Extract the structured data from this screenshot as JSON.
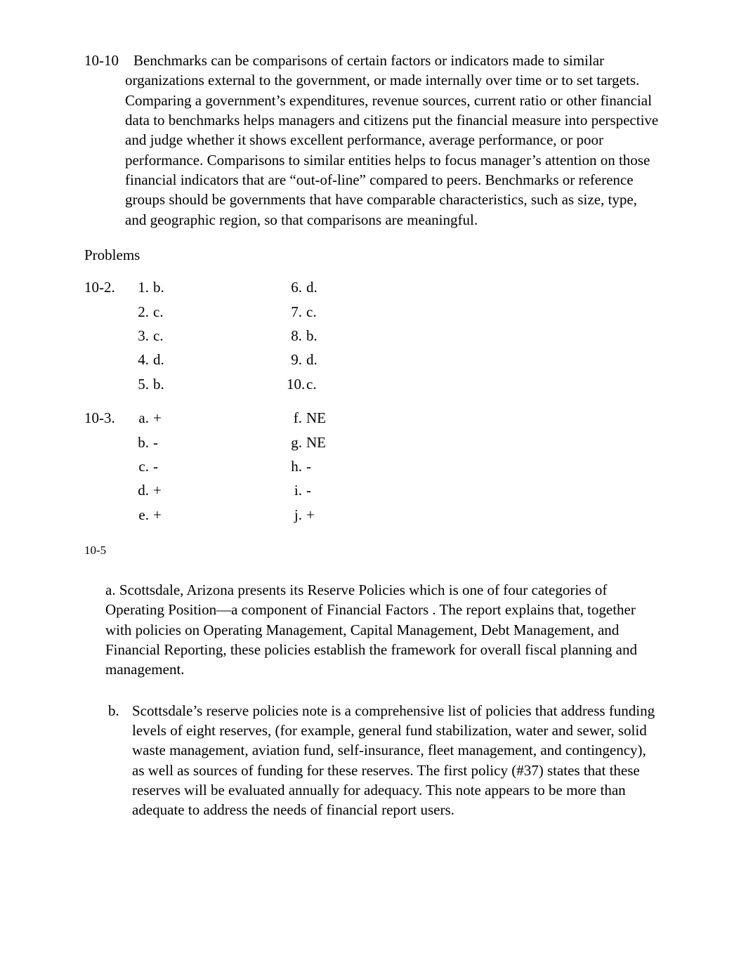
{
  "paragraph_10_10": "10-10 Benchmarks can be comparisons of certain factors or indicators made to similar organizations external to the government, or made internally over time or to set targets.  Comparing a government’s expenditures, revenue sources, current ratio or other financial data to benchmarks helps managers and citizens put the financial measure into perspective and judge whether it shows excellent performance, average performance, or poor performance.  Comparisons to similar entities helps to focus manager’s attention on those financial indicators that are “out-of-line” compared to peers.  Benchmarks or reference groups should be governments that have comparable characteristics, such as size, type, and geographic region, so that comparisons are meaningful.",
  "problems_label": "Problems",
  "problem_10_2": {
    "label": "10-2.",
    "left": [
      {
        "n": "1.",
        "v": "b."
      },
      {
        "n": "2.",
        "v": "c."
      },
      {
        "n": "3.",
        "v": "c."
      },
      {
        "n": "4.",
        "v": "d."
      },
      {
        "n": "5.",
        "v": "b."
      }
    ],
    "right": [
      {
        "n": "6.",
        "v": "d."
      },
      {
        "n": "7.",
        "v": "c."
      },
      {
        "n": "8.",
        "v": "b."
      },
      {
        "n": "9.",
        "v": "d."
      },
      {
        "n": "10.",
        "v": "c."
      }
    ]
  },
  "problem_10_3": {
    "label": "10-3.",
    "left": [
      {
        "n": "a.",
        "v": "+"
      },
      {
        "n": "b.",
        "v": "-"
      },
      {
        "n": "c.",
        "v": "-"
      },
      {
        "n": "d.",
        "v": "+"
      },
      {
        "n": "e.",
        "v": "+"
      }
    ],
    "right": [
      {
        "n": "f.",
        "v": "NE"
      },
      {
        "n": "g.",
        "v": "NE"
      },
      {
        "n": "h.",
        "v": "-"
      },
      {
        "n": "i.",
        "v": "-"
      },
      {
        "n": "j.",
        "v": "+"
      }
    ]
  },
  "problem_10_5": {
    "label": "10-5",
    "a_label": "a.",
    "a_text": "Scottsdale, Arizona presents its Reserve Policies which is one of four categories of Operating Position—a component of Financial Factors . The report explains that, together with policies on Operating Management, Capital Management, Debt Management, and Financial Reporting, these policies establish the framework for overall fiscal planning and management.",
    "b_label": "b.",
    "b_text": "Scottsdale’s reserve policies note is a comprehensive list of policies that address funding levels of eight reserves, (for example,  general fund stabilization, water and sewer, solid waste management, aviation fund, self-insurance, fleet management, and contingency), as well as sources of funding for these reserves.  The first policy (#37) states that these reserves will be evaluated annually for adequacy. This note appears to be more than adequate to address the needs of financial report users."
  }
}
